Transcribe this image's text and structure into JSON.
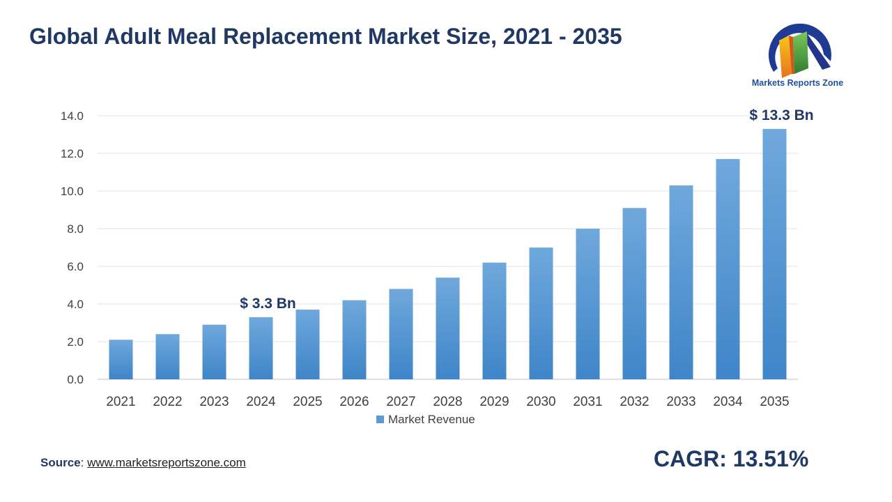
{
  "title": "Global Adult Meal Replacement Market Size, 2021 - 2035",
  "logo": {
    "text": "Markets Reports Zone",
    "colors": [
      "#1f3a93",
      "#f5b316",
      "#e06a1b",
      "#6cc04a"
    ]
  },
  "source": {
    "label": "Source",
    "link": "www.marketsreportszone.com"
  },
  "cagr": "CAGR: 13.51%",
  "chart_data": {
    "type": "bar",
    "categories": [
      "2021",
      "2022",
      "2023",
      "2024",
      "2025",
      "2026",
      "2027",
      "2028",
      "2029",
      "2030",
      "2031",
      "2032",
      "2033",
      "2034",
      "2035"
    ],
    "series": [
      {
        "name": "Market Revenue",
        "values": [
          2.1,
          2.4,
          2.9,
          3.3,
          3.7,
          4.2,
          4.8,
          5.4,
          6.2,
          7.0,
          8.0,
          9.1,
          10.3,
          11.7,
          13.3
        ],
        "color": "#5b9bd5"
      }
    ],
    "ylim": [
      0,
      14
    ],
    "yticks": [
      "0.0",
      "2.0",
      "4.0",
      "6.0",
      "8.0",
      "10.0",
      "12.0",
      "14.0"
    ],
    "grid": true,
    "legend": "bottom",
    "annotations": [
      {
        "category": "2024",
        "text": "$ 3.3 Bn"
      },
      {
        "category": "2035",
        "text": "$ 13.3 Bn"
      }
    ]
  }
}
